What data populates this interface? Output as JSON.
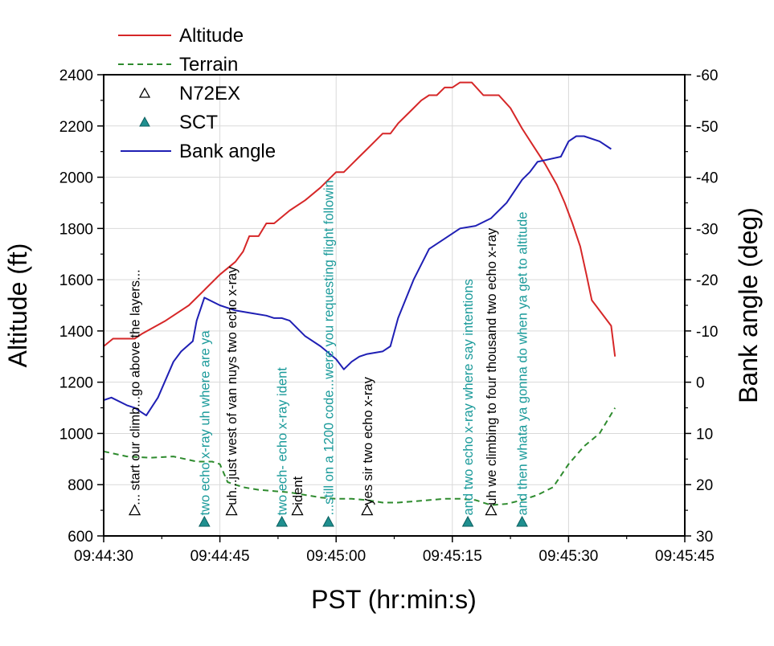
{
  "chart_data": {
    "type": "line",
    "title": "",
    "xlabel": "PST (hr:min:s)",
    "ylabel": "Altitude (ft)",
    "y2label": "Bank angle (deg)",
    "xlim": [
      0,
      75
    ],
    "ylim": [
      600,
      2400
    ],
    "y2lim": [
      30,
      -60
    ],
    "x_ticks": [
      0,
      15,
      30,
      45,
      60,
      75
    ],
    "x_tick_labels": [
      "09:44:30",
      "09:44:45",
      "09:45:00",
      "09:45:15",
      "09:45:30",
      "09:45:45"
    ],
    "y_ticks": [
      600,
      800,
      1000,
      1200,
      1400,
      1600,
      1800,
      2000,
      2200,
      2400
    ],
    "y_tick_labels": [
      "600",
      "800",
      "1000",
      "1200",
      "1400",
      "1600",
      "1800",
      "2000",
      "2200",
      "2400"
    ],
    "y2_ticks": [
      30,
      20,
      10,
      0,
      -10,
      -20,
      -30,
      -40,
      -50,
      -60
    ],
    "y2_tick_labels": [
      "30",
      "20",
      "10",
      "0",
      "-10",
      "-20",
      "-30",
      "-40",
      "-50",
      "-60"
    ],
    "grid": true,
    "legend_position": "top-left",
    "colors": {
      "altitude": "#d62728",
      "terrain": "#2e8b2e",
      "bank": "#1f1fb4",
      "n72ex": "#000000",
      "sct": "#1f8f8f",
      "sct_text": "#1a9a9a"
    },
    "series": [
      {
        "name": "Altitude",
        "axis": "left",
        "style": "solid",
        "x": [
          0,
          1.2,
          4,
          5,
          8,
          11,
          13,
          15,
          17,
          18,
          18.8,
          20,
          21,
          22,
          24,
          26,
          28,
          29,
          30,
          31,
          32,
          33,
          34,
          35,
          36,
          37,
          38,
          39,
          40,
          41,
          42,
          43,
          44,
          45,
          46,
          47,
          47.5,
          49,
          51,
          52.5,
          54,
          55.5,
          57,
          58.5,
          59.5,
          60.5,
          61.5,
          62.3,
          63,
          65.5,
          66
        ],
        "values": [
          1340,
          1370,
          1370,
          1390,
          1440,
          1500,
          1560,
          1620,
          1670,
          1710,
          1770,
          1770,
          1820,
          1820,
          1870,
          1910,
          1960,
          1990,
          2020,
          2020,
          2050,
          2080,
          2110,
          2140,
          2170,
          2170,
          2210,
          2240,
          2270,
          2300,
          2320,
          2320,
          2350,
          2350,
          2370,
          2370,
          2370,
          2320,
          2320,
          2270,
          2190,
          2120,
          2050,
          1970,
          1900,
          1820,
          1730,
          1620,
          1520,
          1420,
          1300
        ]
      },
      {
        "name": "Terrain",
        "axis": "left",
        "style": "dashed",
        "x": [
          0,
          3,
          6,
          9,
          12,
          14,
          15,
          16,
          18,
          20,
          22,
          24,
          26,
          28,
          30,
          32,
          34,
          36,
          38,
          40,
          42,
          44,
          46,
          48,
          50,
          52,
          54,
          56,
          58,
          60,
          62,
          64,
          66
        ],
        "values": [
          930,
          910,
          905,
          910,
          890,
          890,
          880,
          810,
          790,
          780,
          775,
          770,
          760,
          750,
          745,
          745,
          740,
          730,
          730,
          735,
          740,
          745,
          745,
          740,
          720,
          725,
          740,
          760,
          790,
          880,
          950,
          1000,
          1100
        ]
      },
      {
        "name": "Bank angle",
        "axis": "right",
        "style": "solid",
        "x": [
          0,
          1,
          3,
          4,
          5.5,
          7,
          9,
          10,
          11.5,
          12,
          13,
          15,
          17,
          19,
          21,
          22,
          23,
          24,
          26,
          28,
          30,
          31,
          32,
          33,
          34,
          36,
          37,
          38,
          40,
          42,
          44,
          46,
          48,
          50,
          52,
          54,
          55,
          56,
          57.5,
          59,
          60,
          61,
          62,
          64,
          65.5
        ],
        "values": [
          3.5,
          3,
          4.5,
          5,
          6.5,
          3,
          -4,
          -6,
          -8,
          -12,
          -16.5,
          -15,
          -14,
          -13.5,
          -13,
          -12.5,
          -12.5,
          -12,
          -9,
          -7,
          -4.5,
          -2.5,
          -4,
          -5,
          -5.5,
          -6,
          -7,
          -12.5,
          -20,
          -26,
          -28,
          -30,
          -30.5,
          -32,
          -35,
          -39.5,
          -41,
          -43,
          -43.5,
          -44,
          -47,
          -48,
          -48,
          -47,
          -45.5
        ]
      }
    ],
    "markers": [
      {
        "name": "N72EX",
        "symbol": "open-triangle",
        "y": 700,
        "x": [
          4,
          16.5,
          25,
          34,
          50
        ]
      },
      {
        "name": "SCT",
        "symbol": "filled-triangle",
        "y": 655,
        "x": [
          13,
          23,
          29,
          47,
          54
        ]
      }
    ],
    "legend": [
      "Altitude",
      "Terrain",
      "N72EX",
      "SCT",
      "Bank angle"
    ],
    "annotations": [
      {
        "text": "... start our climb...go above the layers...",
        "source": "N72EX",
        "x": 4,
        "y_bottom": 720
      },
      {
        "text": "two echo x-ray uh where are ya",
        "source": "SCT",
        "x": 13,
        "y_bottom": 680
      },
      {
        "text": "uh...just west of van nuys two echo x-ray",
        "source": "N72EX",
        "x": 16.5,
        "y_bottom": 720
      },
      {
        "text": "two ech- echo x-ray ident",
        "source": "SCT",
        "x": 23,
        "y_bottom": 680
      },
      {
        "text": "ident",
        "source": "N72EX",
        "x": 25,
        "y_bottom": 720
      },
      {
        "text": "...still on a 1200 code...were you requesting flight followin",
        "source": "SCT",
        "x": 29,
        "y_bottom": 680
      },
      {
        "text": "yes sir two echo x-ray",
        "source": "N72EX",
        "x": 34,
        "y_bottom": 720
      },
      {
        "text": "and two echo x-ray where say intentions",
        "source": "SCT",
        "x": 47,
        "y_bottom": 680
      },
      {
        "text": "uh we climbing to four thousand two echo x-ray",
        "source": "N72EX",
        "x": 50,
        "y_bottom": 720
      },
      {
        "text": "and then whata ya gonna do when ya get to altitude",
        "source": "SCT",
        "x": 54,
        "y_bottom": 680
      }
    ]
  }
}
